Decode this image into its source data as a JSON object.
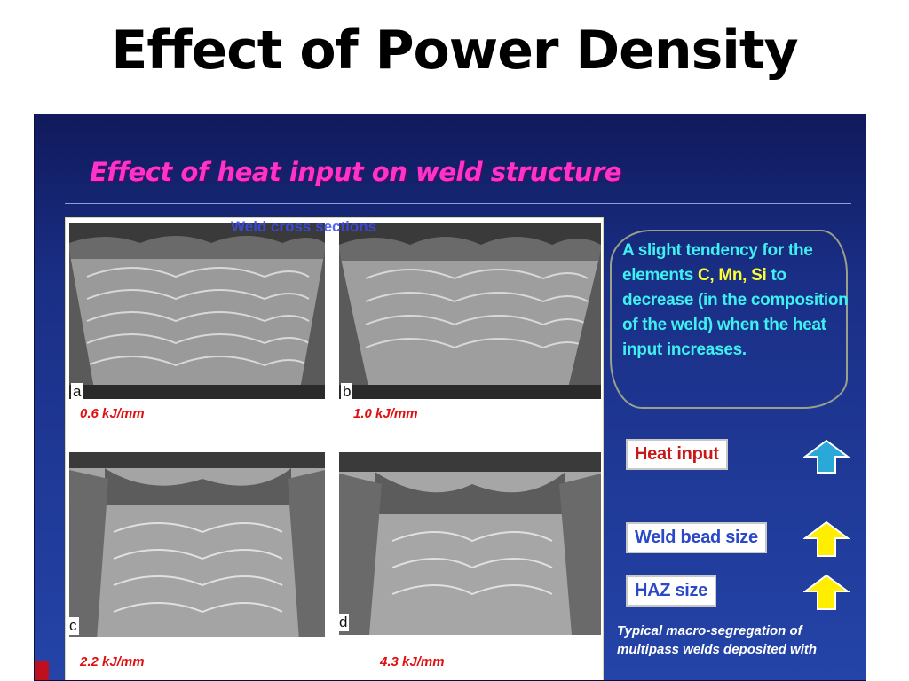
{
  "slide": {
    "title": "Effect of Power Density"
  },
  "panel": {
    "heading": "Effect of heat input on weld structure",
    "figure_caption": "Weld cross sections",
    "samples": [
      {
        "letter": "a",
        "heat_input": "0.6 kJ/mm"
      },
      {
        "letter": "b",
        "heat_input": "1.0 kJ/mm"
      },
      {
        "letter": "c",
        "heat_input": "2.2 kJ/mm"
      },
      {
        "letter": "d",
        "heat_input": "4.3 kJ/mm"
      }
    ],
    "note": {
      "before": "A slight tendency for the elements ",
      "elements": "C, Mn, Si",
      "after": " to decrease (in the composition of the weld) when the heat input increases."
    },
    "indicators": [
      {
        "label": "Heat input",
        "color": "#c81818",
        "arrow_color": "#2aa8d8",
        "direction": "up"
      },
      {
        "label": "Weld bead size",
        "color": "#2a48c8",
        "arrow_color": "#ffee00",
        "direction": "up"
      },
      {
        "label": "HAZ size",
        "color": "#2a48c8",
        "arrow_color": "#ffee00",
        "direction": "up"
      }
    ],
    "footnote": "Typical macro-segregation of multipass welds deposited with"
  }
}
